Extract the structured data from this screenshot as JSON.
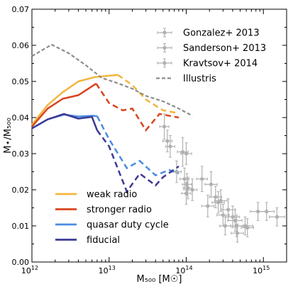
{
  "chart_data": {
    "type": "line",
    "xscale": "log",
    "xlim": [
      1000000000000.0,
      2000000000000000.0
    ],
    "ylim": [
      0,
      0.07
    ],
    "xlabel": "M₅₀₀ [M☉]",
    "ylabel": "M⋆/M₅₀₀",
    "xticks": [
      {
        "value": 1000000000000.0,
        "base": "10",
        "exp": "12"
      },
      {
        "value": 10000000000000.0,
        "base": "10",
        "exp": "13"
      },
      {
        "value": 100000000000000.0,
        "base": "10",
        "exp": "14"
      },
      {
        "value": 1000000000000000.0,
        "base": "10",
        "exp": "15"
      }
    ],
    "yticks": [
      "0.00",
      "0.01",
      "0.02",
      "0.03",
      "0.04",
      "0.05",
      "0.06",
      "0.07"
    ],
    "grid": false,
    "legend_top": {
      "placement": "top-right",
      "entries": [
        {
          "label": "Gonzalez+ 2013",
          "style": "errorbar"
        },
        {
          "label": "Sanderson+ 2013",
          "style": "errorbar"
        },
        {
          "label": "Kravtsov+ 2014",
          "style": "errorbar"
        },
        {
          "label": "Illustris",
          "style": "dashed"
        }
      ]
    },
    "legend_bottom": {
      "placement": "bottom-left",
      "entries": [
        {
          "label": "weak radio",
          "series": 0
        },
        {
          "label": "stronger radio",
          "series": 1
        },
        {
          "label": "quasar duty cycle",
          "series": 2
        },
        {
          "label": "fiducial",
          "series": 3
        }
      ]
    },
    "series": [
      {
        "name": "weak radio",
        "color": "#f2b53f",
        "x": [
          1000000000000.0,
          1600000000000.0,
          2500000000000.0,
          4000000000000.0,
          6500000000000.0,
          13000000000000.0,
          20000000000000.0,
          30000000000000.0,
          50000000000000.0,
          80000000000000.0
        ],
        "y": [
          0.038,
          0.0435,
          0.047,
          0.05,
          0.0512,
          0.0518,
          0.049,
          0.045,
          0.042,
          0.0412
        ],
        "dash_from": 6
      },
      {
        "name": "stronger radio",
        "color": "#d8441c",
        "x": [
          1000000000000.0,
          1600000000000.0,
          2500000000000.0,
          4000000000000.0,
          6800000000000.0,
          10000000000000.0,
          15000000000000.0,
          20000000000000.0,
          30000000000000.0,
          45000000000000.0,
          80000000000000.0
        ],
        "y": [
          0.0375,
          0.0425,
          0.0452,
          0.0462,
          0.0494,
          0.044,
          0.042,
          0.0425,
          0.0365,
          0.041,
          0.04
        ],
        "dash_from": 5
      },
      {
        "name": "quasar duty cycle",
        "color": "#4a8ce0",
        "x": [
          1000000000000.0,
          1600000000000.0,
          2600000000000.0,
          4000000000000.0,
          6000000000000.0,
          7000000000000.0,
          10000000000000.0,
          17000000000000.0,
          25000000000000.0,
          40000000000000.0,
          60000000000000.0,
          80000000000000.0
        ],
        "y": [
          0.037,
          0.0395,
          0.0408,
          0.0403,
          0.0405,
          0.0404,
          0.034,
          0.026,
          0.028,
          0.024,
          0.0255,
          0.0245
        ],
        "dash_from": 6
      },
      {
        "name": "fiducial",
        "color": "#3c3a96",
        "x": [
          1000000000000.0,
          1600000000000.0,
          2600000000000.0,
          4000000000000.0,
          6000000000000.0,
          7000000000000.0,
          10000000000000.0,
          17000000000000.0,
          25000000000000.0,
          40000000000000.0,
          50000000000000.0,
          80000000000000.0
        ],
        "y": [
          0.037,
          0.0395,
          0.041,
          0.0397,
          0.0402,
          0.0365,
          0.032,
          0.0195,
          0.0245,
          0.0212,
          0.0235,
          0.0265
        ],
        "dash_from": 6
      },
      {
        "name": "Illustris",
        "color": "#8c8c8c",
        "style": "dashed",
        "x": [
          1000000000000.0,
          1800000000000.0,
          3000000000000.0,
          5000000000000.0,
          8000000000000.0,
          13000000000000.0,
          20000000000000.0,
          30000000000000.0,
          50000000000000.0,
          80000000000000.0,
          120000000000000.0
        ],
        "y": [
          0.057,
          0.0602,
          0.0578,
          0.0545,
          0.051,
          0.0495,
          0.048,
          0.046,
          0.0445,
          0.0425,
          0.0405
        ]
      }
    ],
    "observations": {
      "color": "#b0b0b0",
      "points": [
        {
          "x": 52000000000000.0,
          "y": 0.0375,
          "xerr": 0.06,
          "yerr": 0.0035
        },
        {
          "x": 57000000000000.0,
          "y": 0.0335,
          "xerr": 0.06,
          "yerr": 0.003
        },
        {
          "x": 62000000000000.0,
          "y": 0.032,
          "xerr": 0.06,
          "yerr": 0.003
        },
        {
          "x": 75000000000000.0,
          "y": 0.025,
          "xerr": 0.06,
          "yerr": 0.003
        },
        {
          "x": 90000000000000.0,
          "y": 0.0305,
          "xerr": 0.07,
          "yerr": 0.004
        },
        {
          "x": 100000000000000.0,
          "y": 0.03,
          "xerr": 0.07,
          "yerr": 0.003
        },
        {
          "x": 95000000000000.0,
          "y": 0.023,
          "xerr": 0.06,
          "yerr": 0.003
        },
        {
          "x": 102000000000000.0,
          "y": 0.0215,
          "xerr": 0.06,
          "yerr": 0.003
        },
        {
          "x": 105000000000000.0,
          "y": 0.0205,
          "xerr": 0.06,
          "yerr": 0.003
        },
        {
          "x": 100000000000000.0,
          "y": 0.019,
          "xerr": 0.06,
          "yerr": 0.003
        },
        {
          "x": 120000000000000.0,
          "y": 0.02,
          "xerr": 0.06,
          "yerr": 0.003
        },
        {
          "x": 160000000000000.0,
          "y": 0.023,
          "xerr": 0.07,
          "yerr": 0.0035
        },
        {
          "x": 190000000000000.0,
          "y": 0.0155,
          "xerr": 0.08,
          "yerr": 0.003
        },
        {
          "x": 210000000000000.0,
          "y": 0.0215,
          "xerr": 0.08,
          "yerr": 0.0035
        },
        {
          "x": 240000000000000.0,
          "y": 0.018,
          "xerr": 0.08,
          "yerr": 0.003
        },
        {
          "x": 260000000000000.0,
          "y": 0.0165,
          "xerr": 0.08,
          "yerr": 0.003
        },
        {
          "x": 280000000000000.0,
          "y": 0.017,
          "xerr": 0.08,
          "yerr": 0.003
        },
        {
          "x": 300000000000000.0,
          "y": 0.013,
          "xerr": 0.08,
          "yerr": 0.003
        },
        {
          "x": 320000000000000.0,
          "y": 0.01,
          "xerr": 0.07,
          "yerr": 0.0025
        },
        {
          "x": 350000000000000.0,
          "y": 0.0145,
          "xerr": 0.09,
          "yerr": 0.003
        },
        {
          "x": 400000000000000.0,
          "y": 0.0125,
          "xerr": 0.09,
          "yerr": 0.003
        },
        {
          "x": 430000000000000.0,
          "y": 0.0115,
          "xerr": 0.09,
          "yerr": 0.003
        },
        {
          "x": 450000000000000.0,
          "y": 0.01,
          "xerr": 0.08,
          "yerr": 0.003
        },
        {
          "x": 460000000000000.0,
          "y": 0.008,
          "xerr": 0.08,
          "yerr": 0.0025
        },
        {
          "x": 580000000000000.0,
          "y": 0.01,
          "xerr": 0.1,
          "yerr": 0.0025
        },
        {
          "x": 620000000000000.0,
          "y": 0.0095,
          "xerr": 0.08,
          "yerr": 0.0025
        },
        {
          "x": 850000000000000.0,
          "y": 0.014,
          "xerr": 0.1,
          "yerr": 0.0025
        },
        {
          "x": 1100000000000000.0,
          "y": 0.014,
          "xerr": 0.1,
          "yerr": 0.0025
        },
        {
          "x": 1500000000000000.0,
          "y": 0.0125,
          "xerr": 0.1,
          "yerr": 0.0025
        }
      ]
    }
  }
}
